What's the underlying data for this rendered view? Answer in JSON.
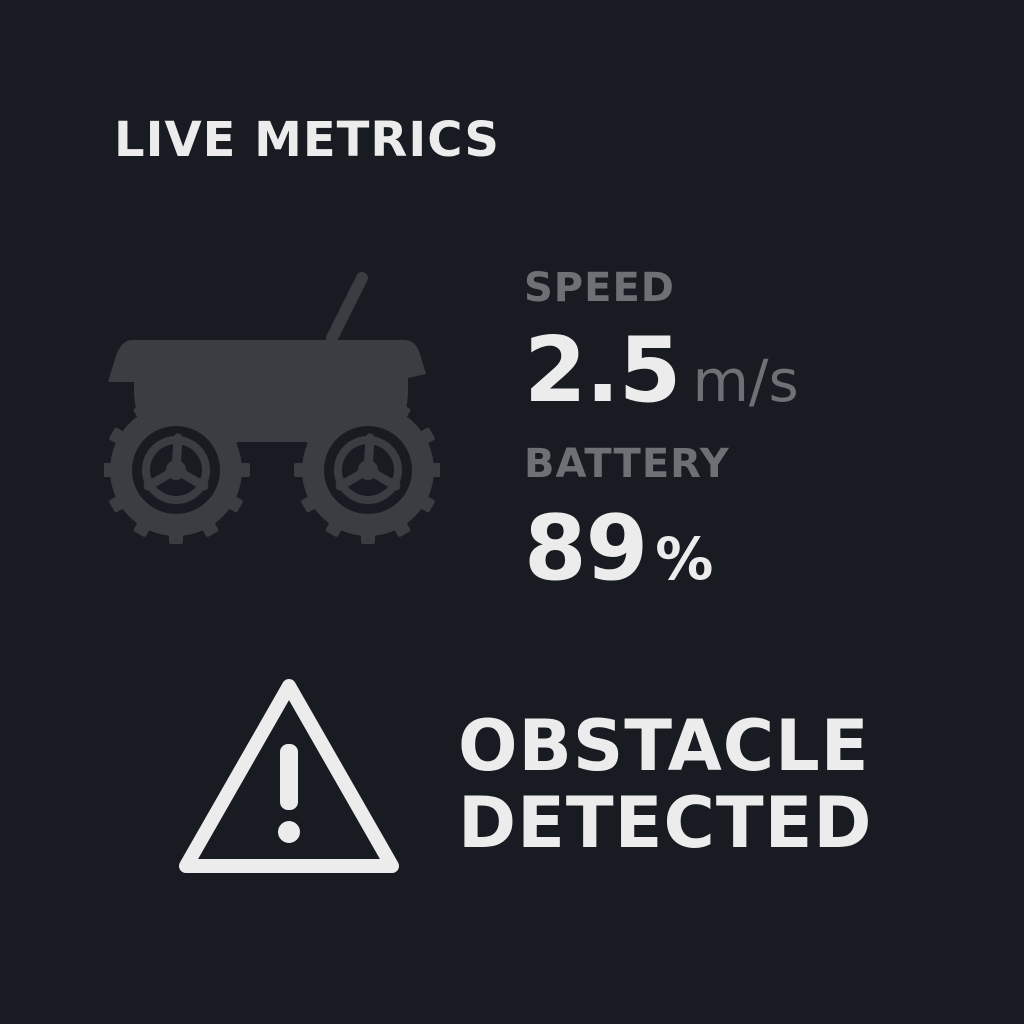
{
  "header": {
    "title": "LIVE METRICS"
  },
  "icons": {
    "rover": "rover-icon",
    "warning": "warning-triangle-icon"
  },
  "metrics": {
    "speed": {
      "label": "SPEED",
      "value": "2.5",
      "unit": "m/s"
    },
    "battery": {
      "label": "BATTERY",
      "value": "89",
      "unit": "%"
    }
  },
  "alert": {
    "line1": "OBSTACLE",
    "line2": "DETECTED"
  },
  "colors": {
    "background": "#181b21",
    "text_primary": "#ececec",
    "text_muted": "#6e7075",
    "icon_fill": "#3a3d42"
  }
}
